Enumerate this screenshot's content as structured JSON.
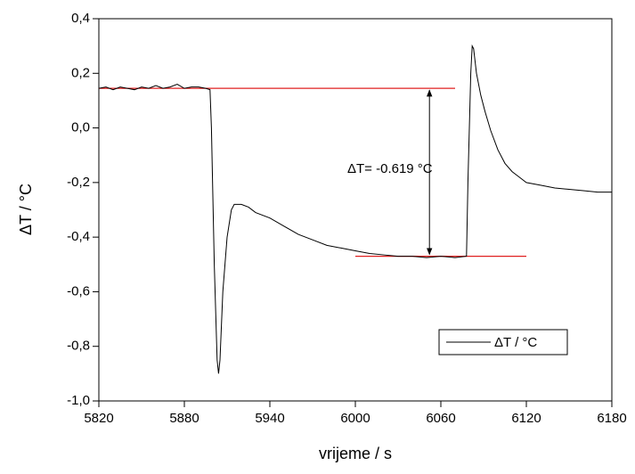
{
  "chart_data": {
    "type": "line",
    "xlabel": "vrijeme / s",
    "ylabel": "ΔT / °C",
    "x": [
      5820,
      5825,
      5830,
      5835,
      5840,
      5845,
      5850,
      5855,
      5860,
      5865,
      5870,
      5875,
      5880,
      5885,
      5890,
      5895,
      5898,
      5899,
      5901,
      5903,
      5904,
      5905,
      5907,
      5910,
      5913,
      5915,
      5920,
      5925,
      5930,
      5940,
      5950,
      5960,
      5970,
      5980,
      5990,
      6000,
      6010,
      6020,
      6030,
      6040,
      6050,
      6060,
      6070,
      6078,
      6079,
      6081,
      6082,
      6083,
      6085,
      6088,
      6091,
      6095,
      6100,
      6105,
      6110,
      6115,
      6120,
      6130,
      6140,
      6150,
      6160,
      6170,
      6180
    ],
    "series": [
      {
        "name": "ΔT / °C",
        "color": "#000000",
        "values": [
          0.145,
          0.15,
          0.14,
          0.15,
          0.145,
          0.14,
          0.15,
          0.145,
          0.155,
          0.145,
          0.15,
          0.16,
          0.145,
          0.15,
          0.15,
          0.145,
          0.14,
          0.0,
          -0.5,
          -0.85,
          -0.9,
          -0.85,
          -0.6,
          -0.4,
          -0.3,
          -0.28,
          -0.28,
          -0.29,
          -0.31,
          -0.33,
          -0.36,
          -0.39,
          -0.41,
          -0.43,
          -0.44,
          -0.45,
          -0.46,
          -0.465,
          -0.47,
          -0.47,
          -0.475,
          -0.47,
          -0.475,
          -0.47,
          -0.2,
          0.2,
          0.3,
          0.29,
          0.2,
          0.12,
          0.06,
          -0.01,
          -0.08,
          -0.13,
          -0.16,
          -0.18,
          -0.2,
          -0.21,
          -0.22,
          -0.225,
          -0.23,
          -0.235,
          -0.235
        ]
      }
    ],
    "reference_lines": [
      {
        "x": [
          5820,
          6070
        ],
        "y": 0.145,
        "color": "#e02020"
      },
      {
        "x": [
          6000,
          6120
        ],
        "y": -0.47,
        "color": "#e02020"
      }
    ],
    "arrow": {
      "x": 6052,
      "y": [
        0.145,
        -0.47
      ]
    },
    "annotation": "ΔT= -0.619 °C",
    "xlim": [
      5820,
      6180
    ],
    "xticks": [
      5820,
      5880,
      5940,
      6000,
      6060,
      6120,
      6180
    ],
    "ylim": [
      -1.0,
      0.4
    ],
    "yticks": [
      {
        "value": -1.0,
        "label": "-1,0"
      },
      {
        "value": -0.8,
        "label": "-0,8"
      },
      {
        "value": -0.6,
        "label": "-0,6"
      },
      {
        "value": -0.4,
        "label": "-0,4"
      },
      {
        "value": -0.2,
        "label": "-0,2"
      },
      {
        "value": 0.0,
        "label": "0,0"
      },
      {
        "value": 0.2,
        "label": "0,2"
      },
      {
        "value": 0.4,
        "label": "0,4"
      }
    ],
    "legend": "lower right",
    "grid": false
  }
}
